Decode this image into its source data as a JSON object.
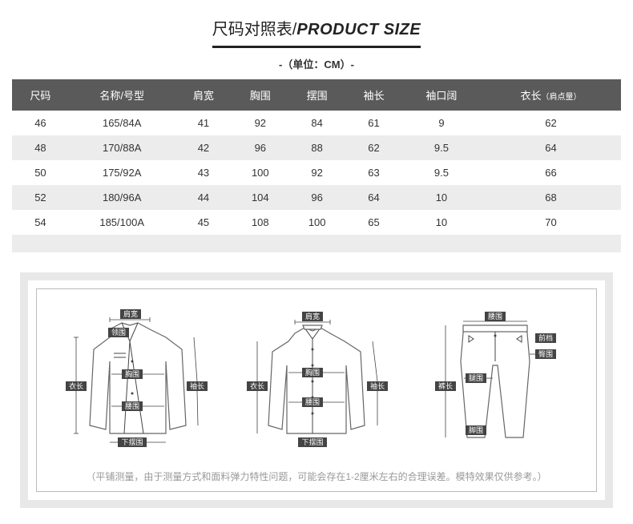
{
  "title": {
    "cn": "尺码对照表/",
    "en": "PRODUCT SIZE"
  },
  "unit": "-（单位：CM）-",
  "columns": [
    "尺码",
    "名称/号型",
    "肩宽",
    "胸围",
    "摆围",
    "袖长",
    "袖口阔",
    "衣长"
  ],
  "col_sub": "（肩点量）",
  "rows": [
    [
      "46",
      "165/84A",
      "41",
      "92",
      "84",
      "61",
      "9",
      "62"
    ],
    [
      "48",
      "170/88A",
      "42",
      "96",
      "88",
      "62",
      "9.5",
      "64"
    ],
    [
      "50",
      "175/92A",
      "43",
      "100",
      "92",
      "63",
      "9.5",
      "66"
    ],
    [
      "52",
      "180/96A",
      "44",
      "104",
      "96",
      "64",
      "10",
      "68"
    ],
    [
      "54",
      "185/100A",
      "45",
      "108",
      "100",
      "65",
      "10",
      "70"
    ]
  ],
  "diagram_labels": {
    "jacket1": {
      "jiankuan": "肩宽",
      "lingwei": "领围",
      "xiongwei": "胸围",
      "yichang": "衣长",
      "xiuchang": "袖长",
      "yaowei": "腰围",
      "xiabai": "下摆围"
    },
    "shirt": {
      "jiankuan": "肩宽",
      "xiongwei": "胸围",
      "yichang": "衣长",
      "xiuchang": "袖长",
      "yaowei": "腰围",
      "xiabai": "下摆围"
    },
    "pants": {
      "yaowei": "腰围",
      "tunwei": "臀围",
      "qiandang": "前档",
      "tuiwei": "腿围",
      "kuchang": "裤长",
      "jiaowei": "脚围"
    }
  },
  "note": "（平铺测量，由于测量方式和面料弹力特性问题，可能会存在1-2厘米左右的合理误差。模特效果仅供参考。）",
  "style": {
    "header_bg": "#5a5a5a",
    "alt_bg": "#ececec",
    "border_gray": "#e8e8e8"
  }
}
